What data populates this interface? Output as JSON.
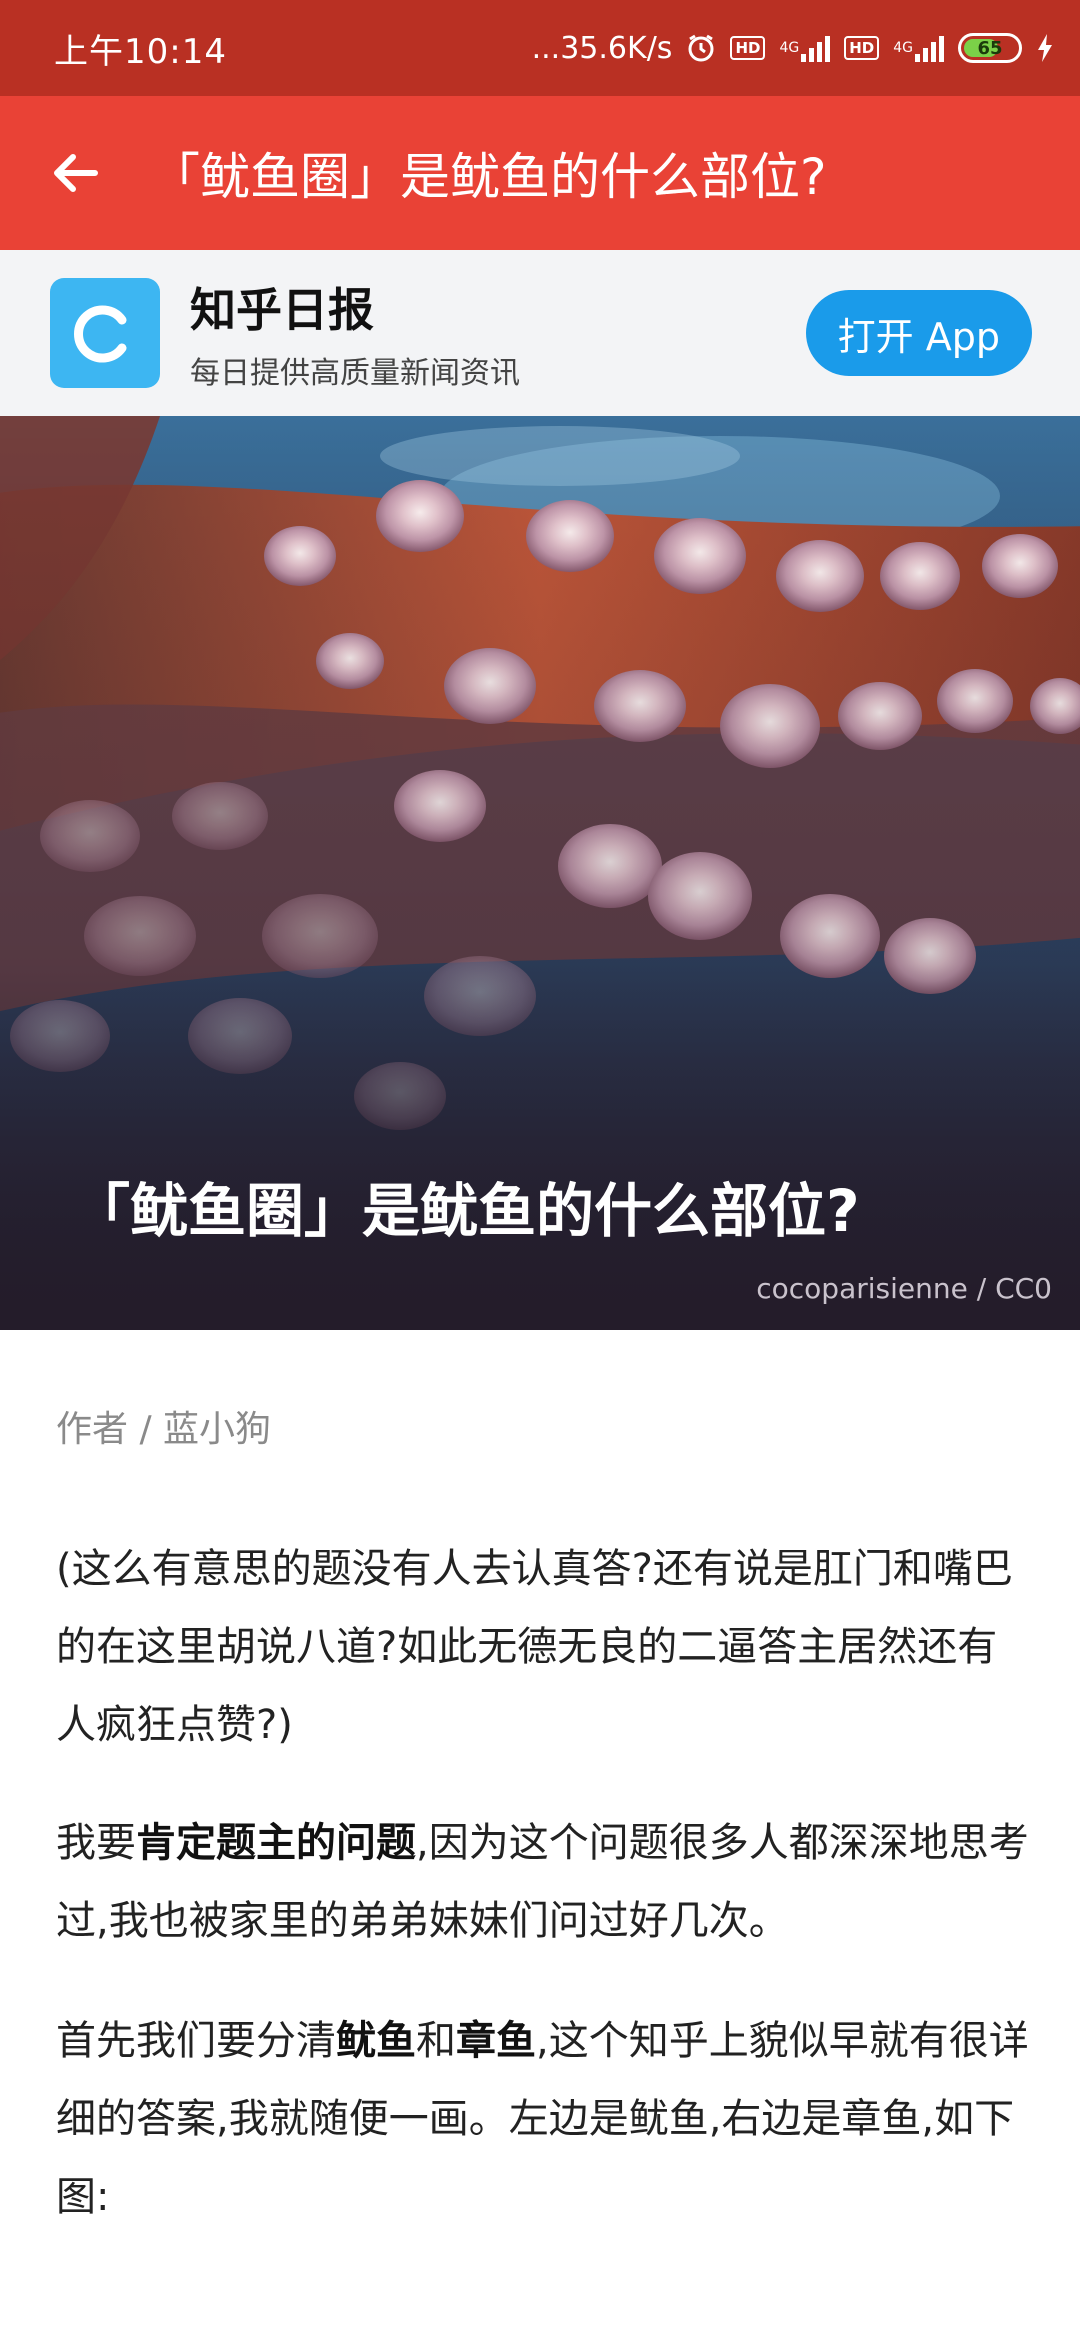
{
  "status_bar": {
    "time": "上午10:14",
    "network_speed": "...35.6K/s",
    "icons": [
      "alarm-icon",
      "hd-icon",
      "signal-4g-icon",
      "hd-icon",
      "signal-4g-icon",
      "battery-icon",
      "charging-icon"
    ],
    "hd_label": "HD",
    "net_label": "4G",
    "battery_level": "65"
  },
  "app_bar": {
    "title": "「鱿鱼圈」是鱿鱼的什么部位?",
    "back_icon": "back-arrow-icon",
    "color": "#e94236"
  },
  "banner": {
    "app_name": "知乎日报",
    "tagline": "每日提供高质量新闻资讯",
    "open_button": "打开 App",
    "logo_color": "#3db6f2",
    "button_color": "#1a9bea"
  },
  "hero": {
    "title": "「鱿鱼圈」是鱿鱼的什么部位?",
    "credit": "cocoparisienne / CC0"
  },
  "article": {
    "author": "作者 / 蓝小狗",
    "p1": "(这么有意思的题没有人去认真答?还有说是肛门和嘴巴的在这里胡说八道?如此无德无良的二逼答主居然还有人疯狂点赞?)",
    "p2_a": "我要",
    "p2_b": "肯定题主的问题",
    "p2_c": ",因为这个问题很多人都深深地思考过,我也被家里的弟弟妹妹们问过好几次。",
    "p3_a": "首先我们要分清",
    "p3_b": "鱿鱼",
    "p3_c": "和",
    "p3_d": "章鱼",
    "p3_e": ",这个知乎上貌似早就有很详细的答案,我就随便一画。左边是鱿鱼,右边是章鱼,如下图:"
  }
}
